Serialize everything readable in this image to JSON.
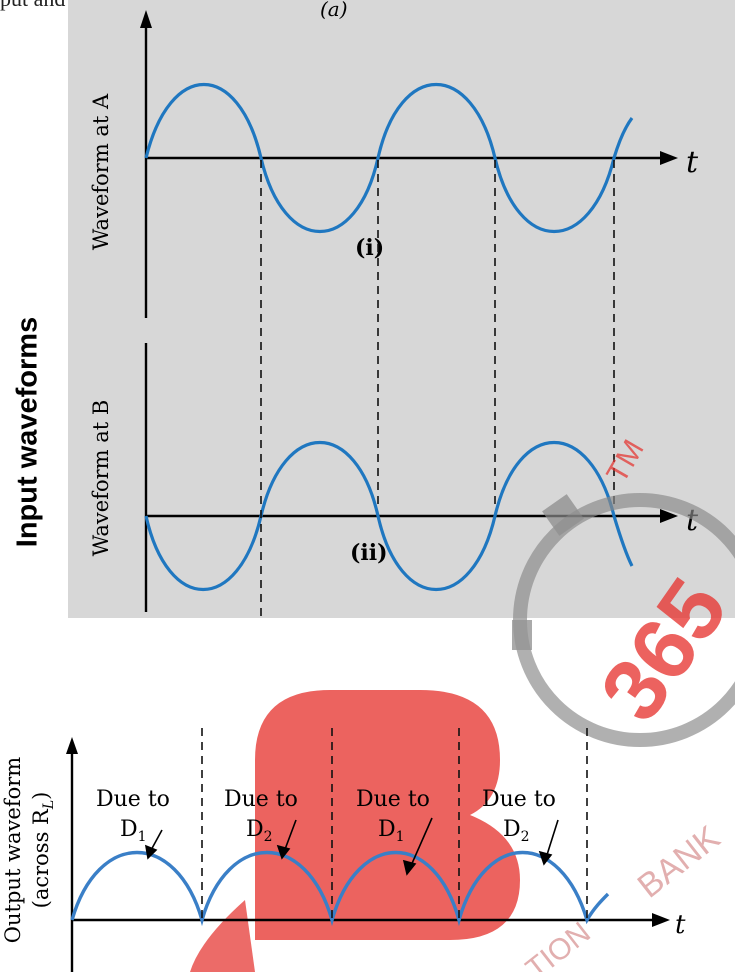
{
  "caption": "put and Output waveforms:",
  "side_label": "Input waveforms",
  "diagram": {
    "title_a": "(a)",
    "waveform_a_label": "Waveform at A",
    "waveform_b_label": "Waveform at B",
    "mark_i": "(i)",
    "mark_ii": "(ii)",
    "time_label": "t",
    "output_label_line1": "Output waveform",
    "output_label_line2": "(across R",
    "output_label_sub": "L",
    "output_label_close": ")",
    "due_segments": [
      {
        "line1": "Due to",
        "line2": "D",
        "sub": "1"
      },
      {
        "line1": "Due to",
        "line2": "D",
        "sub": "2"
      },
      {
        "line1": "Due to",
        "line2": "D",
        "sub": "1"
      },
      {
        "line1": "Due to",
        "line2": "D",
        "sub": "2"
      }
    ]
  },
  "colors": {
    "wave": "#1f77c0",
    "panel": "#d7d7d7",
    "watermark_red": "#e5322d"
  }
}
